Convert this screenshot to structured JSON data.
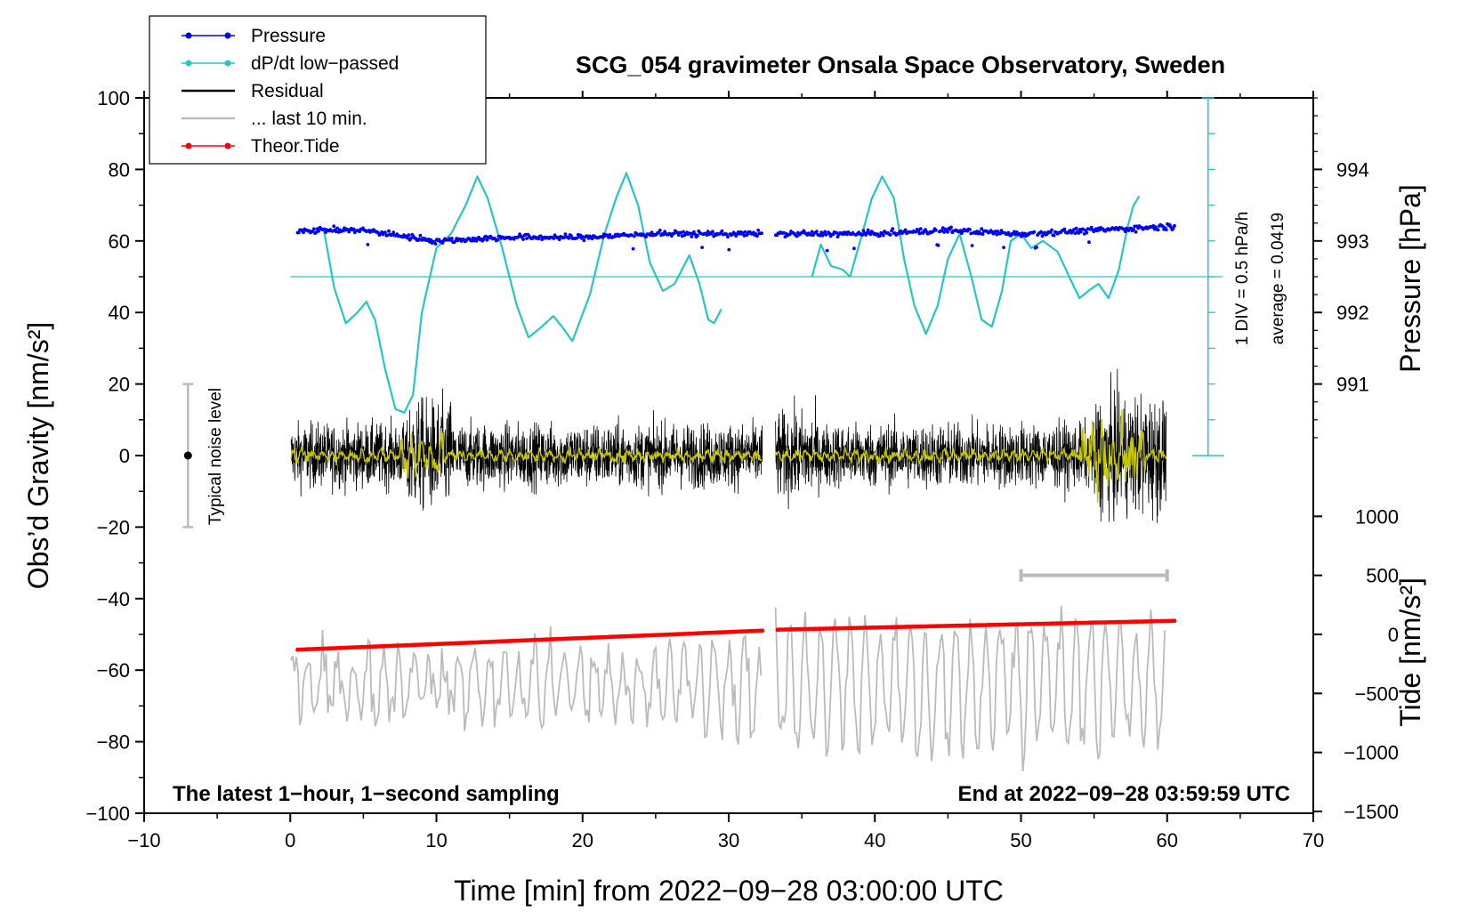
{
  "chart_data": {
    "type": "line",
    "title": "SCG_054 gravimeter Onsala Space Observatory, Sweden",
    "xlabel": "Time [min] from 2022−09−28 03:00:00 UTC",
    "ylabel_left": "Obs’d Gravity [nm/s²]",
    "ylabel_right_top": "Pressure [hPa]",
    "ylabel_right_bottom": "Tide [nm/s²]",
    "xlim": [
      -10,
      70
    ],
    "ylim": [
      -100,
      100
    ],
    "x_ticks": [
      "−10",
      "0",
      "10",
      "20",
      "30",
      "40",
      "50",
      "60",
      "70"
    ],
    "y_ticks": [
      "−100",
      "−80",
      "−60",
      "−40",
      "−20",
      "0",
      "20",
      "40",
      "60",
      "80",
      "100"
    ],
    "pressure_axis": {
      "range_hpa": [
        990,
        995
      ],
      "ticks": [
        "991",
        "992",
        "993",
        "994"
      ]
    },
    "tide_axis": {
      "range": [
        -1500,
        1000
      ],
      "ticks": [
        "1000",
        "500",
        "0",
        "−500",
        "−1000",
        "−1500"
      ]
    },
    "legend": [
      {
        "name": "Pressure",
        "color": "#0000ff",
        "style": "line-dot"
      },
      {
        "name": "dP/dt low−passed",
        "color": "#26c6c6",
        "style": "line-dot"
      },
      {
        "name": "Residual",
        "color": "#000000",
        "style": "line"
      },
      {
        "name": "... last 10 min.",
        "color": "#bbbbbb",
        "style": "line"
      },
      {
        "name": "Theor.Tide",
        "color": "#ff0000",
        "style": "line-dot"
      }
    ],
    "annotations": {
      "left_note": "The latest 1−hour, 1−second sampling",
      "right_note": "End at 2022−09−28 03:59:59 UTC",
      "noise_label": "Typical noise level",
      "div_label": "1 DIV = 0.5 hPa/h",
      "avg_label": "average = 0.0419"
    },
    "noise_level": {
      "x": -7,
      "center": 0,
      "range": [
        -20,
        20
      ]
    },
    "gap": [
      32.3,
      33.2
    ],
    "last10_bar": [
      50,
      60
    ],
    "series": {
      "pressure": {
        "unit": "hPa",
        "x": [
          0.5,
          5,
          10,
          15,
          20,
          25,
          32,
          33.5,
          40,
          45,
          50,
          55,
          60
        ],
        "y": [
          993.15,
          993.15,
          993.0,
          993.05,
          993.05,
          993.1,
          993.1,
          993.1,
          993.1,
          993.15,
          993.1,
          993.15,
          993.2
        ]
      },
      "dpdt": {
        "zero_level": 50,
        "segment1": {
          "x": [
            2.3,
            3.0,
            3.8,
            4.6,
            5.2,
            5.8,
            6.5,
            7.2,
            7.8,
            8.4,
            9.0,
            10.0,
            11.0,
            12.0,
            12.8,
            13.5,
            14.5,
            15.5,
            16.3,
            17.2,
            18.0,
            18.6,
            19.3,
            20.5,
            21.5,
            22.3,
            23.0,
            23.8,
            24.6,
            25.5,
            26.3,
            27.3,
            28.0,
            28.6,
            29.0,
            29.5
          ],
          "y": [
            63,
            47,
            37,
            40,
            43,
            38,
            24,
            13,
            12,
            17,
            40,
            58,
            62,
            70,
            78,
            72,
            58,
            42,
            33,
            36,
            39,
            36,
            32,
            45,
            62,
            72,
            79,
            70,
            54,
            46,
            48,
            56,
            48,
            38,
            37,
            41
          ]
        },
        "segment2": {
          "x": [
            35.7,
            36.3,
            37.0,
            37.8,
            38.3,
            39.0,
            39.8,
            40.5,
            41.3,
            42.0,
            42.7,
            43.5,
            44.3,
            45.0,
            45.8,
            46.6,
            47.3,
            48.0,
            48.7,
            49.3,
            50.0,
            50.7,
            51.5,
            52.5,
            53.3,
            54.0,
            54.6,
            55.3,
            56.0,
            56.7,
            57.3,
            57.7,
            58.1
          ],
          "y": [
            50,
            59,
            53,
            52,
            50,
            60,
            72,
            78,
            72,
            55,
            42,
            34,
            42,
            55,
            62,
            50,
            38,
            36,
            46,
            60,
            62,
            58,
            60,
            57,
            50,
            44,
            46,
            48,
            44,
            52,
            64,
            70,
            72.5
          ]
        }
      },
      "residual": {
        "amplitude": 10,
        "envelope_max": 29,
        "mean": 0
      },
      "residual_smooth": {
        "color": "#c8c800"
      },
      "last10": {
        "center": -64,
        "amplitude": 14
      },
      "tide": {
        "unit": "nm/s²",
        "x": [
          0.5,
          32,
          33.5,
          60.5
        ],
        "y": [
          -130,
          30,
          40,
          115
        ]
      }
    }
  }
}
